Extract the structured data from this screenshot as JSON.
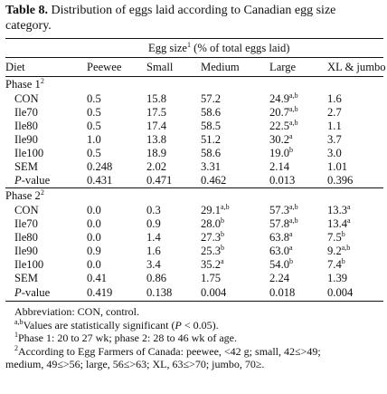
{
  "table": {
    "title_label": "Table 8.",
    "title_text": "Distribution of eggs laid according to Canadian egg size category.",
    "group_header": "Egg size",
    "group_header_sup": "1",
    "group_header_suffix": "(% of total eggs laid)",
    "columns": [
      "Diet",
      "Peewee",
      "Small",
      "Medium",
      "Large",
      "XL & jumbo"
    ],
    "phases": [
      {
        "label": "Phase 1",
        "sup": "2",
        "rows": [
          {
            "diet": "CON",
            "values": [
              {
                "v": "0.5",
                "s": ""
              },
              {
                "v": "15.8",
                "s": ""
              },
              {
                "v": "57.2",
                "s": ""
              },
              {
                "v": "24.9",
                "s": "a,b"
              },
              {
                "v": "1.6",
                "s": ""
              }
            ]
          },
          {
            "diet": "Ile70",
            "values": [
              {
                "v": "0.5",
                "s": ""
              },
              {
                "v": "17.5",
                "s": ""
              },
              {
                "v": "58.6",
                "s": ""
              },
              {
                "v": "20.7",
                "s": "a,b"
              },
              {
                "v": "2.7",
                "s": ""
              }
            ]
          },
          {
            "diet": "Ile80",
            "values": [
              {
                "v": "0.5",
                "s": ""
              },
              {
                "v": "17.4",
                "s": ""
              },
              {
                "v": "58.5",
                "s": ""
              },
              {
                "v": "22.5",
                "s": "a,b"
              },
              {
                "v": "1.1",
                "s": ""
              }
            ]
          },
          {
            "diet": "Ile90",
            "values": [
              {
                "v": "1.0",
                "s": ""
              },
              {
                "v": "13.8",
                "s": ""
              },
              {
                "v": "51.2",
                "s": ""
              },
              {
                "v": "30.2",
                "s": "a"
              },
              {
                "v": "3.7",
                "s": ""
              }
            ]
          },
          {
            "diet": "Ile100",
            "values": [
              {
                "v": "0.5",
                "s": ""
              },
              {
                "v": "18.9",
                "s": ""
              },
              {
                "v": "58.6",
                "s": ""
              },
              {
                "v": "19.0",
                "s": "b"
              },
              {
                "v": "3.0",
                "s": ""
              }
            ]
          },
          {
            "diet": "SEM",
            "values": [
              {
                "v": "0.248",
                "s": ""
              },
              {
                "v": "2.02",
                "s": ""
              },
              {
                "v": "3.31",
                "s": ""
              },
              {
                "v": "2.14",
                "s": ""
              },
              {
                "v": "1.01",
                "s": ""
              }
            ]
          },
          {
            "diet": "P-value",
            "italic_prefix": "P",
            "values": [
              {
                "v": "0.431",
                "s": ""
              },
              {
                "v": "0.471",
                "s": ""
              },
              {
                "v": "0.462",
                "s": ""
              },
              {
                "v": "0.013",
                "s": ""
              },
              {
                "v": "0.396",
                "s": ""
              }
            ]
          }
        ]
      },
      {
        "label": "Phase 2",
        "sup": "2",
        "rows": [
          {
            "diet": "CON",
            "values": [
              {
                "v": "0.0",
                "s": ""
              },
              {
                "v": "0.3",
                "s": ""
              },
              {
                "v": "29.1",
                "s": "a,b"
              },
              {
                "v": "57.3",
                "s": "a,b"
              },
              {
                "v": "13.3",
                "s": "a"
              }
            ]
          },
          {
            "diet": "Ile70",
            "values": [
              {
                "v": "0.0",
                "s": ""
              },
              {
                "v": "0.9",
                "s": ""
              },
              {
                "v": "28.0",
                "s": "b"
              },
              {
                "v": "57.8",
                "s": "a,b"
              },
              {
                "v": "13.4",
                "s": "a"
              }
            ]
          },
          {
            "diet": "Ile80",
            "values": [
              {
                "v": "0.0",
                "s": ""
              },
              {
                "v": "1.4",
                "s": ""
              },
              {
                "v": "27.3",
                "s": "b"
              },
              {
                "v": "63.8",
                "s": "a"
              },
              {
                "v": "7.5",
                "s": "b"
              }
            ]
          },
          {
            "diet": "Ile90",
            "values": [
              {
                "v": "0.9",
                "s": ""
              },
              {
                "v": "1.6",
                "s": ""
              },
              {
                "v": "25.3",
                "s": "b"
              },
              {
                "v": "63.0",
                "s": "a"
              },
              {
                "v": "9.2",
                "s": "a,b"
              }
            ]
          },
          {
            "diet": "Ile100",
            "values": [
              {
                "v": "0.0",
                "s": ""
              },
              {
                "v": "3.4",
                "s": ""
              },
              {
                "v": "35.2",
                "s": "a"
              },
              {
                "v": "54.0",
                "s": "b"
              },
              {
                "v": "7.4",
                "s": "b"
              }
            ]
          },
          {
            "diet": "SEM",
            "values": [
              {
                "v": "0.41",
                "s": ""
              },
              {
                "v": "0.86",
                "s": ""
              },
              {
                "v": "1.75",
                "s": ""
              },
              {
                "v": "2.24",
                "s": ""
              },
              {
                "v": "1.39",
                "s": ""
              }
            ]
          },
          {
            "diet": "P-value",
            "italic_prefix": "P",
            "values": [
              {
                "v": "0.419",
                "s": ""
              },
              {
                "v": "0.138",
                "s": ""
              },
              {
                "v": "0.004",
                "s": ""
              },
              {
                "v": "0.018",
                "s": ""
              },
              {
                "v": "0.004",
                "s": ""
              }
            ]
          }
        ]
      }
    ]
  },
  "notes": {
    "abbreviation": "Abbreviation: CON, control.",
    "sig_sup": "a,b",
    "sig_text_before": "Values are statistically significant (",
    "sig_p": "P",
    "sig_text_after": " < 0.05).",
    "note1_sup": "1",
    "note1_text": "Phase 1: 20 to 27 wk; phase 2: 28 to 46 wk of age.",
    "note2_sup": "2",
    "note2_line1": "According to Egg Farmers of Canada: peewee, <42 g; small, 42≤>49;",
    "note2_line2": "medium, 49≤>56; large, 56≤>63; XL, 63≤>70; jumbo, 70≥."
  }
}
